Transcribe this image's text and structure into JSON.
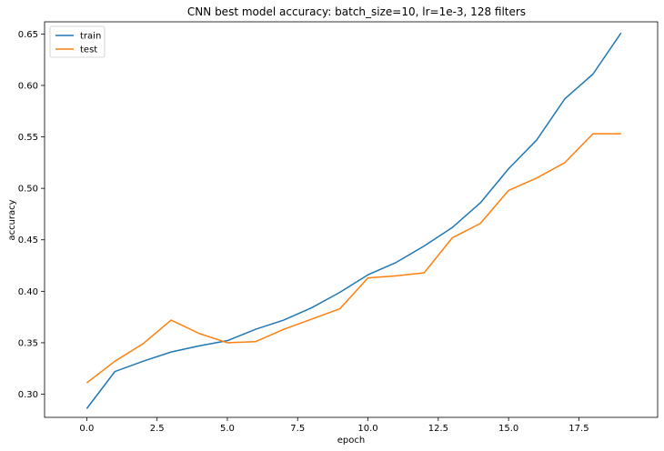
{
  "chart_data": {
    "type": "line",
    "title": "CNN best model accuracy: batch_size=10, lr=1e-3, 128 filters",
    "xlabel": "epoch",
    "ylabel": "accuracy",
    "xlim": [
      -1.5,
      20.3
    ],
    "ylim": [
      0.2775,
      0.6618
    ],
    "xticks": [
      0.0,
      2.5,
      5.0,
      7.5,
      10.0,
      12.5,
      15.0,
      17.5
    ],
    "xtick_labels": [
      "0.0",
      "2.5",
      "5.0",
      "7.5",
      "10.0",
      "12.5",
      "15.0",
      "17.5"
    ],
    "yticks": [
      0.3,
      0.35,
      0.4,
      0.45,
      0.5,
      0.55,
      0.6,
      0.65
    ],
    "ytick_labels": [
      "0.30",
      "0.35",
      "0.40",
      "0.45",
      "0.50",
      "0.55",
      "0.60",
      "0.65"
    ],
    "grid": false,
    "legend_position": "top-left",
    "x": [
      0,
      1,
      2,
      3,
      4,
      5,
      6,
      7,
      8,
      9,
      10,
      11,
      12,
      13,
      14,
      15,
      16,
      17,
      18,
      19
    ],
    "series": [
      {
        "name": "train",
        "color": "#1f77b4",
        "values": [
          0.286,
          0.322,
          0.332,
          0.341,
          0.347,
          0.352,
          0.363,
          0.372,
          0.384,
          0.399,
          0.416,
          0.428,
          0.444,
          0.462,
          0.486,
          0.519,
          0.547,
          0.587,
          0.611,
          0.651
        ]
      },
      {
        "name": "test",
        "color": "#ff7f0e",
        "values": [
          0.311,
          0.332,
          0.349,
          0.372,
          0.359,
          0.35,
          0.351,
          0.363,
          0.373,
          0.383,
          0.413,
          0.415,
          0.418,
          0.452,
          0.466,
          0.498,
          0.51,
          0.525,
          0.553,
          0.553
        ]
      }
    ]
  }
}
